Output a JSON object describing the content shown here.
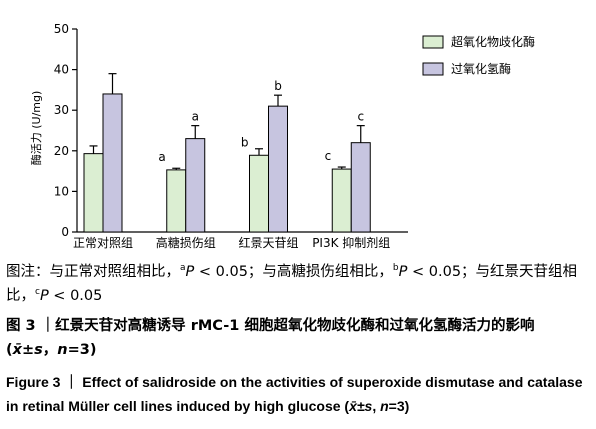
{
  "chart_data": {
    "type": "bar",
    "categories": [
      "正常对照组",
      "高糖损伤组",
      "红景天苷组",
      "PI3K 抑制剂组"
    ],
    "series": [
      {
        "name": "超氧化物歧化酶",
        "color": "#dbeed2",
        "values": [
          19.3,
          15.3,
          18.9,
          15.5
        ],
        "errors": [
          1.9,
          0.4,
          1.6,
          0.5
        ],
        "sig": [
          "",
          "a",
          "b",
          "c"
        ]
      },
      {
        "name": "过氧化氢酶",
        "color": "#c7c5e0",
        "values": [
          34.0,
          23.0,
          31.0,
          22.0
        ],
        "errors": [
          5.0,
          3.2,
          2.7,
          4.2
        ],
        "sig": [
          "",
          "a",
          "b",
          "c"
        ]
      }
    ],
    "ylabel": "酶活力 (U/mg)",
    "ylim": [
      0,
      50
    ],
    "yticks": [
      0,
      10,
      20,
      30,
      40,
      50
    ],
    "grid": false,
    "legend": "top-right"
  },
  "caption": {
    "note_prefix": "图注：与正常对照组相比，",
    "note_a_sup": "a",
    "note_a_p": "P",
    "note_a_rest": " < 0.05；与高糖损伤组相比，",
    "note_b_sup": "b",
    "note_b_p": "P",
    "note_b_rest": " < 0.05；与红景天苷组相比，",
    "note_c_sup": "c",
    "note_c_p": "P",
    "note_c_rest": " < 0.05",
    "cn_title_main": "图 3 ｜红景天苷对高糖诱导 rMC-1 细胞超氧化物歧化酶和过氧化氢酶活力的影响 (",
    "cn_title_stat": "x̄±s",
    "cn_title_sep": "，",
    "cn_title_n": "n",
    "cn_title_end": "=3)",
    "en_title_main": "Figure 3 ｜ Effect of salidroside on the activities of superoxide dismutase and catalase in retinal Müller cell lines induced by high glucose (",
    "en_title_stat": "x̄±s",
    "en_title_sep": ", ",
    "en_title_n": "n",
    "en_title_end": "=3)"
  }
}
